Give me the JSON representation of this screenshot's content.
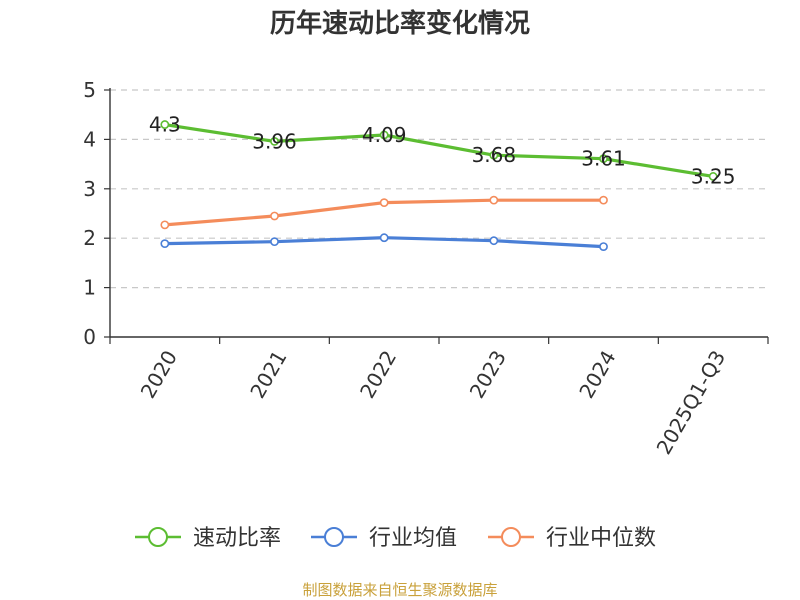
{
  "chart_data": {
    "type": "line",
    "title": "历年速动比率变化情况",
    "categories": [
      "2020",
      "2021",
      "2022",
      "2023",
      "2024",
      "2025Q1-Q3"
    ],
    "ylim": [
      0,
      5
    ],
    "yticks": [
      0,
      1,
      2,
      3,
      4,
      5
    ],
    "grid": true,
    "legend_position": "bottom",
    "series": [
      {
        "name": "速动比率",
        "color": "#5cbd32",
        "values": [
          4.3,
          3.96,
          4.09,
          3.68,
          3.61,
          3.25
        ],
        "labels": [
          "4.3",
          "3.96",
          "4.09",
          "3.68",
          "3.61",
          "3.25"
        ],
        "show_labels": true
      },
      {
        "name": "行业均值",
        "color": "#4a7fd6",
        "values": [
          1.89,
          1.93,
          2.01,
          1.95,
          1.83,
          null
        ],
        "show_labels": false
      },
      {
        "name": "行业中位数",
        "color": "#f48c5b",
        "values": [
          2.27,
          2.45,
          2.72,
          2.77,
          2.77,
          null
        ],
        "show_labels": false
      }
    ]
  },
  "source_text": "制图数据来自恒生聚源数据库"
}
